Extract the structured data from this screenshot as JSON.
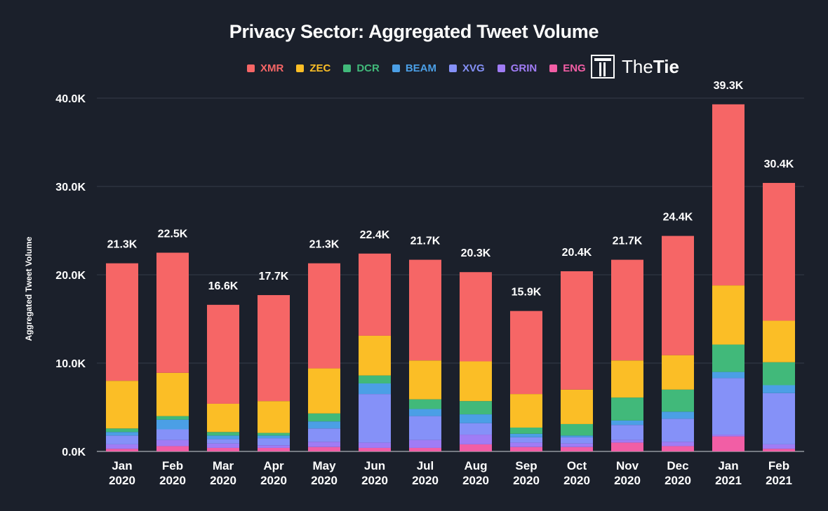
{
  "chart_data": {
    "type": "bar",
    "stacked": true,
    "title": "Privacy Sector: Aggregated Tweet Volume",
    "ylabel": "Aggregated Tweet Volume",
    "xlabel": "",
    "ylim": [
      0,
      40000
    ],
    "yticks": [
      0,
      10000,
      20000,
      30000,
      40000
    ],
    "ytick_labels": [
      "0.0K",
      "10.0K",
      "20.0K",
      "30.0K",
      "40.0K"
    ],
    "grid": true,
    "legend_position": "top",
    "categories": [
      {
        "line1": "Jan",
        "line2": "2020"
      },
      {
        "line1": "Feb",
        "line2": "2020"
      },
      {
        "line1": "Mar",
        "line2": "2020"
      },
      {
        "line1": "Apr",
        "line2": "2020"
      },
      {
        "line1": "May",
        "line2": "2020"
      },
      {
        "line1": "Jun",
        "line2": "2020"
      },
      {
        "line1": "Jul",
        "line2": "2020"
      },
      {
        "line1": "Aug",
        "line2": "2020"
      },
      {
        "line1": "Sep",
        "line2": "2020"
      },
      {
        "line1": "Oct",
        "line2": "2020"
      },
      {
        "line1": "Nov",
        "line2": "2020"
      },
      {
        "line1": "Dec",
        "line2": "2020"
      },
      {
        "line1": "Jan",
        "line2": "2021"
      },
      {
        "line1": "Feb",
        "line2": "2021"
      }
    ],
    "total_labels": [
      "21.3K",
      "22.5K",
      "16.6K",
      "17.7K",
      "21.3K",
      "22.4K",
      "21.7K",
      "20.3K",
      "15.9K",
      "20.4K",
      "21.7K",
      "24.4K",
      "39.3K",
      "30.4K"
    ],
    "series": [
      {
        "name": "ENG",
        "color": "#f25ea5",
        "values": [
          300,
          600,
          400,
          400,
          500,
          400,
          400,
          800,
          500,
          500,
          1000,
          600,
          1700,
          300
        ]
      },
      {
        "name": "GRIN",
        "color": "#a07cf5",
        "values": [
          500,
          700,
          500,
          300,
          600,
          600,
          900,
          1100,
          500,
          400,
          300,
          500,
          200,
          500
        ]
      },
      {
        "name": "XVG",
        "color": "#8591f8",
        "values": [
          1000,
          1200,
          500,
          800,
          1500,
          5500,
          2700,
          1300,
          600,
          700,
          1700,
          2600,
          6400,
          5800
        ]
      },
      {
        "name": "BEAM",
        "color": "#4b9fe6",
        "values": [
          400,
          1100,
          400,
          300,
          800,
          1200,
          800,
          1000,
          400,
          200,
          500,
          800,
          700,
          900
        ]
      },
      {
        "name": "DCR",
        "color": "#41b97a",
        "values": [
          400,
          400,
          400,
          300,
          900,
          900,
          1100,
          1500,
          700,
          1300,
          2600,
          2500,
          3100,
          2600
        ]
      },
      {
        "name": "ZEC",
        "color": "#fbbe26",
        "values": [
          5400,
          4900,
          3200,
          3600,
          5100,
          4500,
          4400,
          4500,
          3800,
          3900,
          4200,
          3900,
          6700,
          4700
        ]
      },
      {
        "name": "XMR",
        "color": "#f66666",
        "values": [
          13300,
          13600,
          11200,
          12000,
          11900,
          9300,
          11400,
          10100,
          9400,
          13400,
          11400,
          13500,
          20500,
          15600
        ]
      }
    ]
  },
  "brand": {
    "logo_text_light": "The",
    "logo_text_bold": "Tie"
  }
}
